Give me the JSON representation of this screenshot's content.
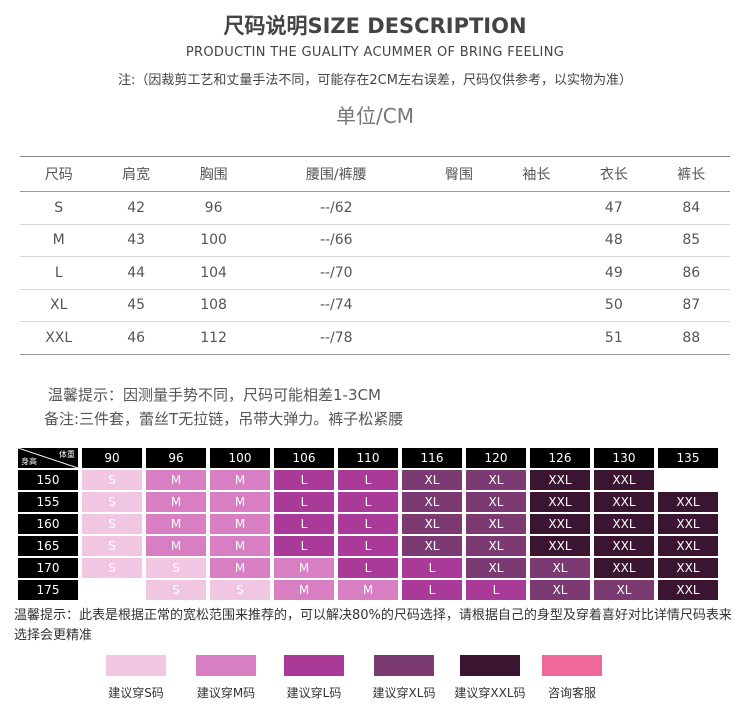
{
  "header": {
    "title": "尺码说明SIZE DESCRIPTION",
    "subtitle": "PRODUCTIN THE GUALITY ACUMMER OF BRING FEELING",
    "note": "注:（因裁剪工艺和丈量手法不同，可能存在2CM左右误差，尺码仅供参考，以实物为准）",
    "unit": "单位/CM"
  },
  "size_table": {
    "headers": [
      "尺码",
      "肩宽",
      "胸围",
      "腰围/裤腰",
      "臀围",
      "袖长",
      "衣长",
      "裤长"
    ],
    "rows": [
      [
        "S",
        "42",
        "96",
        "--/62",
        "",
        "",
        "47",
        "84"
      ],
      [
        "M",
        "43",
        "100",
        "--/66",
        "",
        "",
        "48",
        "85"
      ],
      [
        "L",
        "44",
        "104",
        "--/70",
        "",
        "",
        "49",
        "86"
      ],
      [
        "XL",
        "45",
        "108",
        "--/74",
        "",
        "",
        "50",
        "87"
      ],
      [
        "XXL",
        "46",
        "112",
        "--/78",
        "",
        "",
        "51",
        "88"
      ]
    ]
  },
  "tips": {
    "line1": "温馨提示：因测量手势不同，尺码可能相差1-3CM",
    "line2": "备注:三件套，蕾丝T无拉链，吊带大弹力。裤子松紧腰"
  },
  "recommend": {
    "corner_top": "体重",
    "corner_bottom": "身高",
    "weights": [
      "90",
      "96",
      "100",
      "106",
      "110",
      "116",
      "120",
      "126",
      "130",
      "135"
    ],
    "rows": [
      {
        "height": "150",
        "sizes": [
          "S",
          "M",
          "M",
          "L",
          "L",
          "XL",
          "XL",
          "XXL",
          "XXL",
          ""
        ]
      },
      {
        "height": "155",
        "sizes": [
          "S",
          "M",
          "M",
          "L",
          "L",
          "XL",
          "XL",
          "XXL",
          "XXL",
          "XXL"
        ]
      },
      {
        "height": "160",
        "sizes": [
          "S",
          "M",
          "M",
          "L",
          "L",
          "XL",
          "XL",
          "XXL",
          "XXL",
          "XXL"
        ]
      },
      {
        "height": "165",
        "sizes": [
          "S",
          "M",
          "M",
          "L",
          "L",
          "XL",
          "XL",
          "XXL",
          "XXL",
          "XXL"
        ]
      },
      {
        "height": "170",
        "sizes": [
          "S",
          "S",
          "M",
          "M",
          "L",
          "L",
          "XL",
          "XL",
          "XXL",
          "XXL"
        ]
      },
      {
        "height": "175",
        "sizes": [
          "",
          "S",
          "S",
          "M",
          "M",
          "L",
          "L",
          "XL",
          "XL",
          "XXL"
        ]
      }
    ]
  },
  "footer_note": "温馨提示：此表是根据正常的宽松范围来推荐的，可以解决80%的尺码选择，请根据自己的身型及穿着喜好对比详情尺码表来选择会更精准",
  "legend": [
    {
      "label": "建议穿S码",
      "color": "#f0c6e2"
    },
    {
      "label": "建议穿M码",
      "color": "#d77fc2"
    },
    {
      "label": "建议穿L码",
      "color": "#aa3a98"
    },
    {
      "label": "建议穿XL码",
      "color": "#7b3b72"
    },
    {
      "label": "建议穿XXL码",
      "color": "#3b1432"
    },
    {
      "label": "咨询客服",
      "color": "#f0689a"
    }
  ]
}
